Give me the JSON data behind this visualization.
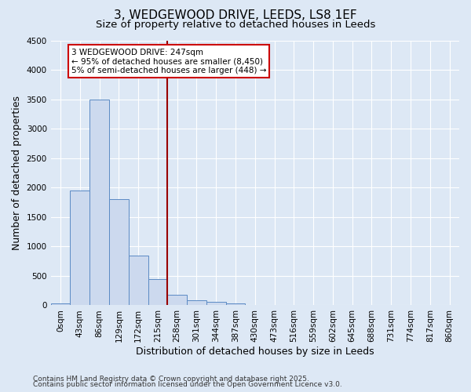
{
  "title": "3, WEDGEWOOD DRIVE, LEEDS, LS8 1EF",
  "subtitle": "Size of property relative to detached houses in Leeds",
  "xlabel": "Distribution of detached houses by size in Leeds",
  "ylabel": "Number of detached properties",
  "categories": [
    "0sqm",
    "43sqm",
    "86sqm",
    "129sqm",
    "172sqm",
    "215sqm",
    "258sqm",
    "301sqm",
    "344sqm",
    "387sqm",
    "430sqm",
    "473sqm",
    "516sqm",
    "559sqm",
    "602sqm",
    "645sqm",
    "688sqm",
    "731sqm",
    "774sqm",
    "817sqm",
    "860sqm"
  ],
  "values": [
    30,
    1950,
    3500,
    1800,
    850,
    450,
    175,
    90,
    55,
    30,
    10,
    5,
    0,
    0,
    0,
    0,
    0,
    0,
    0,
    0,
    0
  ],
  "bar_color": "#ccd9ee",
  "bar_edge_color": "#5b8ac4",
  "vline_x": 5.5,
  "vline_color": "#990000",
  "annotation_text": "3 WEDGEWOOD DRIVE: 247sqm\n← 95% of detached houses are smaller (8,450)\n5% of semi-detached houses are larger (448) →",
  "annotation_box_color": "#ffffff",
  "annotation_box_edge": "#cc0000",
  "ylim": [
    0,
    4500
  ],
  "yticks": [
    0,
    500,
    1000,
    1500,
    2000,
    2500,
    3000,
    3500,
    4000,
    4500
  ],
  "footer_line1": "Contains HM Land Registry data © Crown copyright and database right 2025.",
  "footer_line2": "Contains public sector information licensed under the Open Government Licence v3.0.",
  "bg_color": "#dde8f5",
  "plot_bg_color": "#dde8f5",
  "title_fontsize": 11,
  "subtitle_fontsize": 9.5,
  "axis_label_fontsize": 9,
  "tick_fontsize": 7.5,
  "annotation_fontsize": 7.5,
  "footer_fontsize": 6.5
}
